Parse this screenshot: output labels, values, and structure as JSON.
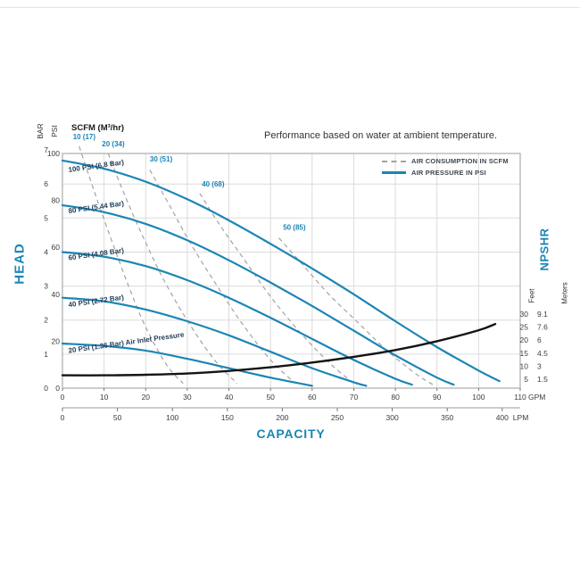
{
  "page": {
    "title": "Performance based on water at ambient temperature."
  },
  "legend": {
    "items": [
      {
        "label": "AIR CONSUMPTION IN SCFM",
        "style": "dashed"
      },
      {
        "label": "AIR PRESSURE IN PSI",
        "style": "solid"
      }
    ]
  },
  "labels": {
    "head": "HEAD",
    "capacity": "CAPACITY",
    "npshr": "NPSHR",
    "bar": "BAR",
    "psi": "PSI",
    "scfm_header": "SCFM (M³/hr)",
    "feet": "Feet",
    "meters": "Meters"
  },
  "colors": {
    "accent": "#1b85b5",
    "dashed_gray": "#a3a3a3",
    "npshr_black": "#141414",
    "grid": "#dcdcdc",
    "curve_label": "#203e58",
    "axis_text": "#3c3c3c"
  },
  "chart_data": {
    "type": "line",
    "title": "Performance based on water at ambient temperature.",
    "x_axis": {
      "label": "CAPACITY",
      "gpm_unit": "GPM",
      "lpm_unit": "LPM",
      "gpm_ticks": [
        0,
        10,
        20,
        30,
        40,
        50,
        60,
        70,
        80,
        90,
        100,
        110
      ],
      "gpm_max": 110,
      "lpm_ticks": [
        0,
        50,
        100,
        150,
        200,
        250,
        300,
        350,
        400
      ],
      "lpm_per_gallon": 3.7854
    },
    "y_axis": {
      "label": "HEAD",
      "psi_ticks": [
        0,
        20,
        40,
        60,
        80,
        100
      ],
      "psi_max": 100,
      "bar_ticks": [
        0,
        1,
        2,
        3,
        4,
        5,
        6,
        7
      ],
      "psi_per_bar": 14.5
    },
    "npshr_axis": {
      "label": "NPSHR",
      "feet_ticks": [
        30,
        25,
        20,
        15,
        10,
        5
      ],
      "meters_ticks": [
        "9.1",
        "7.6",
        "6",
        "4.5",
        "3",
        "1.5"
      ],
      "feet_min": 5
    },
    "air_pressure_curves": [
      {
        "label": "100 PSI (6.8 Bar)",
        "label_pos": [
          1.5,
          92
        ],
        "points": [
          [
            0,
            97
          ],
          [
            10,
            93.5
          ],
          [
            20,
            88
          ],
          [
            30,
            80.5
          ],
          [
            40,
            71.5
          ],
          [
            50,
            61.5
          ],
          [
            60,
            51
          ],
          [
            70,
            40
          ],
          [
            80,
            28.5
          ],
          [
            90,
            17.5
          ],
          [
            100,
            7.5
          ],
          [
            105,
            3
          ]
        ]
      },
      {
        "label": "80 PSI (5.44 Bar)",
        "label_pos": [
          1.5,
          74.5
        ],
        "points": [
          [
            0,
            78
          ],
          [
            10,
            75
          ],
          [
            20,
            70
          ],
          [
            30,
            63
          ],
          [
            40,
            54.5
          ],
          [
            50,
            45
          ],
          [
            60,
            35
          ],
          [
            70,
            24.5
          ],
          [
            80,
            14
          ],
          [
            90,
            4.5
          ],
          [
            94,
            1.5
          ]
        ]
      },
      {
        "label": "60 PSI (4.08 Bar)",
        "label_pos": [
          1.5,
          54.5
        ],
        "points": [
          [
            0,
            58
          ],
          [
            10,
            56
          ],
          [
            20,
            52
          ],
          [
            30,
            46
          ],
          [
            40,
            38.5
          ],
          [
            50,
            30
          ],
          [
            60,
            21
          ],
          [
            70,
            12
          ],
          [
            80,
            4
          ],
          [
            84,
            1.5
          ]
        ]
      },
      {
        "label": "40 PSI (2.72 Bar)",
        "label_pos": [
          1.5,
          34.5
        ],
        "points": [
          [
            0,
            38.5
          ],
          [
            10,
            37
          ],
          [
            20,
            33.5
          ],
          [
            30,
            28.5
          ],
          [
            40,
            22.5
          ],
          [
            50,
            15.5
          ],
          [
            60,
            8.5
          ],
          [
            70,
            2.5
          ],
          [
            73,
            1
          ]
        ]
      },
      {
        "label": "20 PSI (1.36 Bar) Air Inlet Pressure",
        "label_pos": [
          1.5,
          15
        ],
        "points": [
          [
            0,
            19
          ],
          [
            10,
            18
          ],
          [
            20,
            16
          ],
          [
            30,
            12.5
          ],
          [
            40,
            8.5
          ],
          [
            50,
            4.5
          ],
          [
            60,
            1
          ]
        ]
      }
    ],
    "air_consumption_curves": [
      {
        "label": "10 (17)",
        "label_pos": [
          2.5,
          106
        ],
        "points": [
          [
            4,
            103
          ],
          [
            8,
            82
          ],
          [
            12,
            62
          ],
          [
            16,
            43
          ],
          [
            20,
            26
          ],
          [
            25,
            10
          ],
          [
            29,
            2
          ]
        ]
      },
      {
        "label": "20 (34)",
        "label_pos": [
          9.5,
          103
        ],
        "points": [
          [
            11,
            100
          ],
          [
            15,
            82
          ],
          [
            20,
            62
          ],
          [
            25,
            44
          ],
          [
            31,
            26
          ],
          [
            37,
            11
          ],
          [
            42,
            2
          ]
        ]
      },
      {
        "label": "30 (51)",
        "label_pos": [
          21,
          96.5
        ],
        "points": [
          [
            21,
            93
          ],
          [
            26,
            77
          ],
          [
            31,
            61
          ],
          [
            37,
            44
          ],
          [
            43,
            28
          ],
          [
            50,
            12
          ],
          [
            56,
            2
          ]
        ]
      },
      {
        "label": "40 (68)",
        "label_pos": [
          33.5,
          86
        ],
        "points": [
          [
            33,
            83
          ],
          [
            38,
            69
          ],
          [
            44,
            54
          ],
          [
            50,
            39
          ],
          [
            57,
            24
          ],
          [
            64,
            11
          ],
          [
            70,
            2
          ]
        ]
      },
      {
        "label": "50 (85)",
        "label_pos": [
          53,
          67.5
        ],
        "points": [
          [
            52,
            64
          ],
          [
            58,
            52
          ],
          [
            64,
            40
          ],
          [
            71,
            28
          ],
          [
            78,
            16
          ],
          [
            85,
            6
          ],
          [
            89,
            1.5
          ]
        ]
      }
    ],
    "npshr_curve": {
      "points_gpm_feet": [
        [
          0,
          6.5
        ],
        [
          10,
          6.5
        ],
        [
          20,
          6.7
        ],
        [
          30,
          7.2
        ],
        [
          40,
          8.2
        ],
        [
          50,
          9.6
        ],
        [
          60,
          11.4
        ],
        [
          70,
          13.6
        ],
        [
          80,
          16.2
        ],
        [
          90,
          19.6
        ],
        [
          100,
          23.8
        ],
        [
          104,
          26.2
        ]
      ]
    }
  }
}
